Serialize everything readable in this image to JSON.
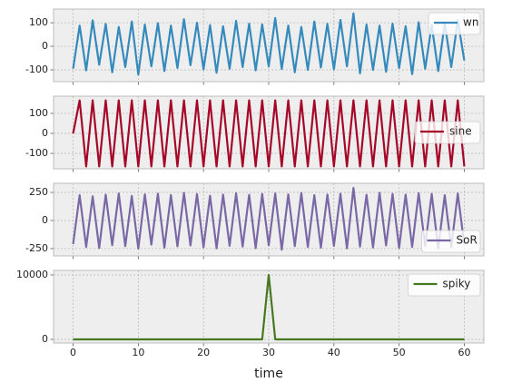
{
  "chart_data": [
    {
      "type": "line",
      "x": [
        0,
        1,
        2,
        3,
        4,
        5,
        6,
        7,
        8,
        9,
        10,
        11,
        12,
        13,
        14,
        15,
        16,
        17,
        18,
        19,
        20,
        21,
        22,
        23,
        24,
        25,
        26,
        27,
        28,
        29,
        30,
        31,
        32,
        33,
        34,
        35,
        36,
        37,
        38,
        39,
        40,
        41,
        42,
        43,
        44,
        45,
        46,
        47,
        48,
        49,
        50,
        51,
        52,
        53,
        54,
        55,
        56,
        57,
        58,
        59,
        60
      ],
      "series": [
        {
          "name": "wn",
          "color": "#348abd",
          "values": [
            -95,
            88,
            -102,
            110,
            -78,
            95,
            -110,
            82,
            -88,
            105,
            -120,
            92,
            -85,
            98,
            -105,
            88,
            -92,
            115,
            -80,
            100,
            -98,
            90,
            -112,
            85,
            -95,
            108,
            -88,
            96,
            -102,
            93,
            -85,
            120,
            -96,
            88,
            -110,
            82,
            -100,
            105,
            -90,
            95,
            -98,
            112,
            -85,
            140,
            -115,
            92,
            -100,
            88,
            -108,
            96,
            -92,
            85,
            -118,
            102,
            -95,
            90,
            -105,
            98,
            -88,
            110,
            -60
          ]
        }
      ],
      "xlim": [
        -3,
        63
      ],
      "xticks": [
        0,
        10,
        20,
        30,
        40,
        50,
        60
      ],
      "ylim": [
        -150,
        158
      ],
      "yticks": [
        -100,
        0,
        100
      ],
      "grid": true,
      "legend": "upper right",
      "show_xticklabels": false
    },
    {
      "type": "line",
      "x": [
        0,
        1,
        2,
        3,
        4,
        5,
        6,
        7,
        8,
        9,
        10,
        11,
        12,
        13,
        14,
        15,
        16,
        17,
        18,
        19,
        20,
        21,
        22,
        23,
        24,
        25,
        26,
        27,
        28,
        29,
        30,
        31,
        32,
        33,
        34,
        35,
        36,
        37,
        38,
        39,
        40,
        41,
        42,
        43,
        44,
        45,
        46,
        47,
        48,
        49,
        50,
        51,
        52,
        53,
        54,
        55,
        56,
        57,
        58,
        59,
        60
      ],
      "series": [
        {
          "name": "sine",
          "color": "#a60628",
          "values": [
            0,
            165,
            -165,
            165,
            -165,
            165,
            -165,
            165,
            -165,
            165,
            -165,
            165,
            -165,
            165,
            -165,
            165,
            -165,
            165,
            -165,
            165,
            -165,
            165,
            -165,
            165,
            -165,
            165,
            -165,
            165,
            -165,
            165,
            -165,
            165,
            -165,
            165,
            -165,
            165,
            -165,
            165,
            -165,
            165,
            -165,
            165,
            -165,
            165,
            -165,
            165,
            -165,
            165,
            -165,
            165,
            -165,
            165,
            -165,
            165,
            -165,
            165,
            -165,
            165,
            -165,
            165,
            -165
          ]
        }
      ],
      "xlim": [
        -3,
        63
      ],
      "xticks": [
        0,
        10,
        20,
        30,
        40,
        50,
        60
      ],
      "ylim": [
        -177,
        186
      ],
      "yticks": [
        -100,
        0,
        100
      ],
      "grid": true,
      "legend": "center right",
      "show_xticklabels": false
    },
    {
      "type": "line",
      "x": [
        0,
        1,
        2,
        3,
        4,
        5,
        6,
        7,
        8,
        9,
        10,
        11,
        12,
        13,
        14,
        15,
        16,
        17,
        18,
        19,
        20,
        21,
        22,
        23,
        24,
        25,
        26,
        27,
        28,
        29,
        30,
        31,
        32,
        33,
        34,
        35,
        36,
        37,
        38,
        39,
        40,
        41,
        42,
        43,
        44,
        45,
        46,
        47,
        48,
        49,
        50,
        51,
        52,
        53,
        54,
        55,
        56,
        57,
        58,
        59,
        60
      ],
      "series": [
        {
          "name": "SoR",
          "color": "#7a68a6",
          "values": [
            -210,
            225,
            -235,
            215,
            -245,
            230,
            -220,
            240,
            -228,
            218,
            -250,
            232,
            -215,
            238,
            -242,
            226,
            -230,
            245,
            -222,
            235,
            -238,
            220,
            -248,
            230,
            -225,
            242,
            -232,
            228,
            -246,
            236,
            -220,
            240,
            -260,
            232,
            -228,
            244,
            -236,
            225,
            -242,
            230,
            -226,
            238,
            -248,
            290,
            -232,
            228,
            -240,
            246,
            -222,
            236,
            -244,
            230,
            -235,
            242,
            -228,
            236,
            -250,
            225,
            -238,
            240,
            -215
          ]
        }
      ],
      "xlim": [
        -3,
        63
      ],
      "xticks": [
        0,
        10,
        20,
        30,
        40,
        50,
        60
      ],
      "ylim": [
        -315,
        331
      ],
      "yticks": [
        -250,
        0,
        250
      ],
      "grid": true,
      "legend": "lower right",
      "show_xticklabels": false
    },
    {
      "type": "line",
      "x": [
        0,
        1,
        2,
        3,
        4,
        5,
        6,
        7,
        8,
        9,
        10,
        11,
        12,
        13,
        14,
        15,
        16,
        17,
        18,
        19,
        20,
        21,
        22,
        23,
        24,
        25,
        26,
        27,
        28,
        29,
        30,
        31,
        32,
        33,
        34,
        35,
        36,
        37,
        38,
        39,
        40,
        41,
        42,
        43,
        44,
        45,
        46,
        47,
        48,
        49,
        50,
        51,
        52,
        53,
        54,
        55,
        56,
        57,
        58,
        59,
        60
      ],
      "series": [
        {
          "name": "spiky",
          "color": "#467821",
          "values": [
            0,
            0,
            0,
            0,
            0,
            0,
            0,
            0,
            0,
            0,
            0,
            0,
            0,
            0,
            0,
            0,
            0,
            0,
            0,
            0,
            0,
            0,
            0,
            0,
            0,
            0,
            0,
            0,
            0,
            0,
            10000,
            0,
            0,
            0,
            0,
            0,
            0,
            0,
            0,
            0,
            0,
            0,
            0,
            0,
            0,
            0,
            0,
            0,
            0,
            0,
            0,
            0,
            0,
            0,
            0,
            0,
            0,
            0,
            0,
            0,
            0
          ]
        }
      ],
      "xlim": [
        -3,
        63
      ],
      "xticks": [
        0,
        10,
        20,
        30,
        40,
        50,
        60
      ],
      "ylim": [
        -560,
        10700
      ],
      "yticks": [
        0,
        10000
      ],
      "grid": true,
      "legend": "upper right",
      "show_xticklabels": true,
      "xlabel": "time"
    }
  ]
}
